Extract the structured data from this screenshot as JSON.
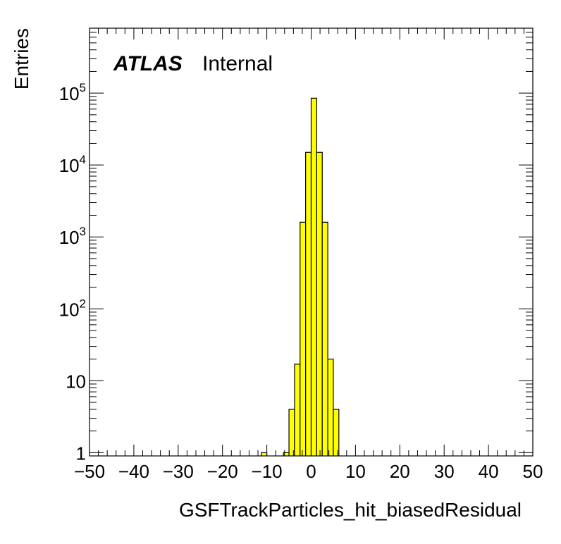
{
  "chart_data": {
    "type": "bar",
    "subtype": "histogram",
    "ylabel": "Entries",
    "xlabel": "GSFTrackParticles_hit_biasedResidual",
    "label": {
      "experiment": "ATLAS",
      "status": "Internal"
    },
    "xlim": [
      -50,
      50
    ],
    "ylim": [
      0.9,
      800000
    ],
    "y_scale": "log",
    "grid": false,
    "x_ticks": [
      "−50",
      "−40",
      "−30",
      "−20",
      "−10",
      "0",
      "10",
      "20",
      "30",
      "40",
      "50"
    ],
    "y_ticks": [
      {
        "base": "1",
        "exp": ""
      },
      {
        "base": "10",
        "exp": ""
      },
      {
        "base": "10",
        "exp": "2"
      },
      {
        "base": "10",
        "exp": "3"
      },
      {
        "base": "10",
        "exp": "4"
      },
      {
        "base": "10",
        "exp": "5"
      }
    ],
    "bin_width": 1.25,
    "bins": [
      {
        "x0": -11.25,
        "count": 1
      },
      {
        "x0": -6.25,
        "count": 1
      },
      {
        "x0": -5.0,
        "count": 4
      },
      {
        "x0": -3.75,
        "count": 17
      },
      {
        "x0": -2.5,
        "count": 1600
      },
      {
        "x0": -1.25,
        "count": 15000
      },
      {
        "x0": 0.0,
        "count": 85000
      },
      {
        "x0": 1.25,
        "count": 15000
      },
      {
        "x0": 2.5,
        "count": 1600
      },
      {
        "x0": 3.75,
        "count": 20
      },
      {
        "x0": 5.0,
        "count": 4
      }
    ],
    "fill_color": "#ffff00",
    "line_color": "#000000"
  }
}
